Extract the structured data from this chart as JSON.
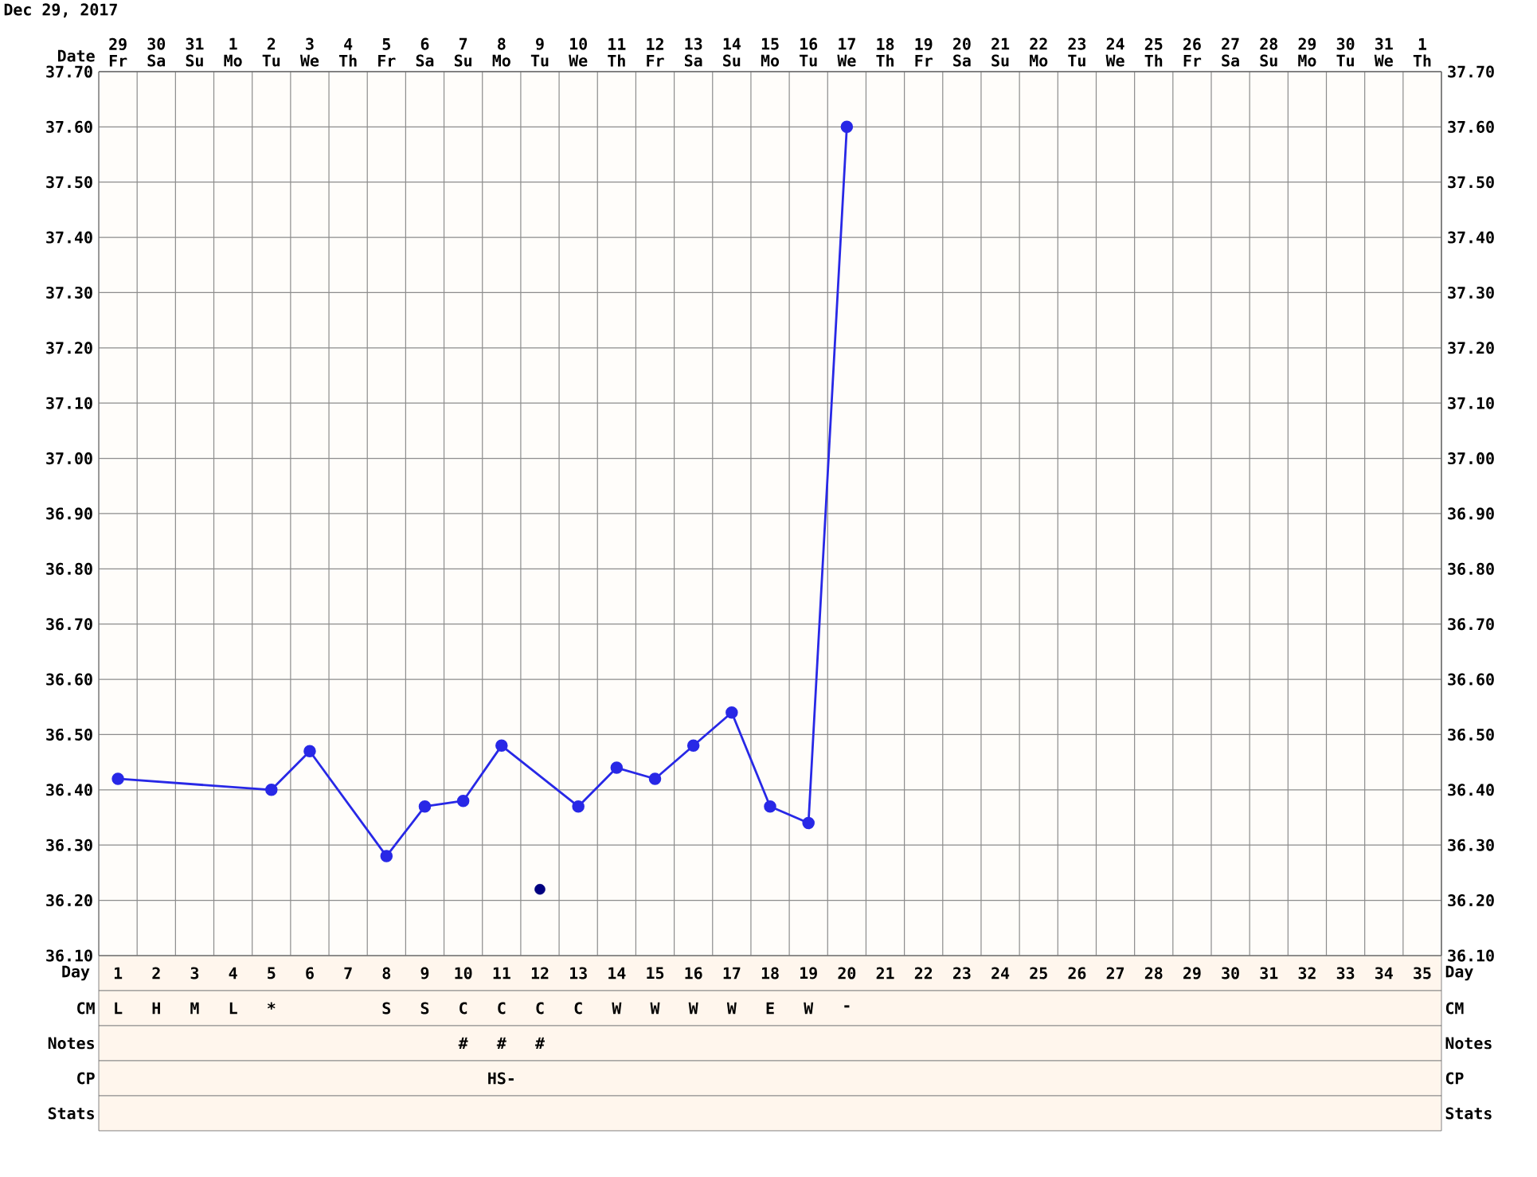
{
  "chart_data": {
    "type": "line",
    "title": "Dec 29, 2017",
    "xlabel": "Day",
    "categories": [
      "1",
      "2",
      "3",
      "4",
      "5",
      "6",
      "7",
      "8",
      "9",
      "10",
      "11",
      "12",
      "13",
      "14",
      "15",
      "16",
      "17",
      "18",
      "19",
      "20",
      "21",
      "22",
      "23",
      "24",
      "25",
      "26",
      "27",
      "28",
      "29",
      "30",
      "31",
      "32",
      "33",
      "34",
      "35"
    ],
    "ylim": [
      36.1,
      37.7
    ],
    "yticks": [
      {
        "value": 36.1,
        "label": "36.10"
      },
      {
        "value": 36.2,
        "label": "36.20"
      },
      {
        "value": 36.3,
        "label": "36.30"
      },
      {
        "value": 36.4,
        "label": "36.40"
      },
      {
        "value": 36.5,
        "label": "36.50"
      },
      {
        "value": 36.6,
        "label": "36.60"
      },
      {
        "value": 36.7,
        "label": "36.70"
      },
      {
        "value": 36.8,
        "label": "36.80"
      },
      {
        "value": 36.9,
        "label": "36.90"
      },
      {
        "value": 37.0,
        "label": "37.00"
      },
      {
        "value": 37.1,
        "label": "37.10"
      },
      {
        "value": 37.2,
        "label": "37.20"
      },
      {
        "value": 37.3,
        "label": "37.30"
      },
      {
        "value": 37.4,
        "label": "37.40"
      },
      {
        "value": 37.5,
        "label": "37.50"
      },
      {
        "value": 37.6,
        "label": "37.60"
      },
      {
        "value": 37.7,
        "label": "37.70"
      }
    ],
    "y2lim": [
      36.1,
      37.7
    ],
    "y2ticks": [
      {
        "value": 36.1,
        "label": "36.10"
      },
      {
        "value": 36.2,
        "label": "36.20"
      },
      {
        "value": 36.3,
        "label": "36.30"
      },
      {
        "value": 36.4,
        "label": "36.40"
      },
      {
        "value": 36.5,
        "label": "36.50"
      },
      {
        "value": 36.6,
        "label": "36.60"
      },
      {
        "value": 36.7,
        "label": "36.70"
      },
      {
        "value": 36.8,
        "label": "36.80"
      },
      {
        "value": 36.9,
        "label": "36.90"
      },
      {
        "value": 37.0,
        "label": "37.00"
      },
      {
        "value": 37.1,
        "label": "37.10"
      },
      {
        "value": 37.2,
        "label": "37.20"
      },
      {
        "value": 37.3,
        "label": "37.30"
      },
      {
        "value": 37.4,
        "label": "37.40"
      },
      {
        "value": 37.5,
        "label": "37.50"
      },
      {
        "value": 37.6,
        "label": "37.60"
      },
      {
        "value": 37.7,
        "label": "37.70"
      }
    ],
    "grid": true,
    "marker": "circle",
    "line_style": "solid",
    "series": [
      {
        "color": "#2828e6",
        "values": [
          36.42,
          null,
          null,
          null,
          36.4,
          36.47,
          null,
          36.28,
          36.37,
          36.38,
          36.48,
          null,
          36.37,
          36.44,
          36.42,
          36.48,
          36.54,
          36.37,
          36.34,
          37.6,
          null,
          null,
          null,
          null,
          null,
          null,
          null,
          null,
          null,
          null,
          null,
          null,
          null,
          null,
          null
        ]
      },
      {
        "type": "scatter",
        "color": "#00007f",
        "values": [
          null,
          null,
          null,
          null,
          null,
          null,
          null,
          null,
          null,
          null,
          null,
          36.22,
          null,
          null,
          null,
          null,
          null,
          null,
          null,
          null,
          null,
          null,
          null,
          null,
          null,
          null,
          null,
          null,
          null,
          null,
          null,
          null,
          null,
          null,
          null
        ]
      }
    ],
    "annotations": [
      "Date",
      "29 Fr",
      "30 Sa",
      "31 Su",
      "1 Mo",
      "2 Tu",
      "3 We",
      "4 Th",
      "5 Fr",
      "6 Sa",
      "7 Su",
      "8 Mo",
      "9 Tu",
      "10 We",
      "11 Th",
      "12 Fr",
      "13 Sa",
      "14 Su",
      "15 Mo",
      "16 Tu",
      "17 We",
      "18 Th",
      "19 Fr",
      "20 Sa",
      "21 Su",
      "22 Mo",
      "23 Tu",
      "24 We",
      "25 Th",
      "26 Fr",
      "27 Sa",
      "28 Su",
      "29 Mo",
      "30 Tu",
      "31 We",
      "1 Th",
      "CM",
      "L",
      "H",
      "M",
      "L",
      "*",
      null,
      null,
      "S",
      "S",
      "C",
      "C",
      "C",
      "C",
      "W",
      "W",
      "W",
      "W",
      "E",
      "W",
      "-",
      null,
      null,
      null,
      null,
      null,
      null,
      null,
      null,
      null,
      null,
      null,
      null,
      null,
      null,
      null,
      "Notes",
      null,
      null,
      null,
      null,
      null,
      null,
      null,
      null,
      null,
      "#",
      "#",
      "#",
      null,
      null,
      null,
      null,
      null,
      null,
      null,
      null,
      null,
      null,
      null,
      null,
      null,
      null,
      null,
      null,
      null,
      null,
      null,
      null,
      null,
      null,
      null,
      "CP",
      null,
      null,
      null,
      null,
      null,
      null,
      null,
      null,
      null,
      null,
      "HS-",
      null,
      null,
      null,
      null,
      null,
      null,
      null,
      null,
      null,
      null,
      null,
      null,
      null,
      null,
      null,
      null,
      null,
      null,
      null,
      null,
      null,
      null,
      null,
      null,
      "Stats",
      null,
      null,
      null,
      null,
      null,
      null,
      null,
      null,
      null,
      null,
      null,
      null,
      null,
      null,
      null,
      null,
      null,
      null,
      null,
      null,
      null,
      null,
      null,
      null,
      null,
      null,
      null,
      null,
      null,
      null,
      null,
      null,
      null,
      null,
      null
    ]
  }
}
